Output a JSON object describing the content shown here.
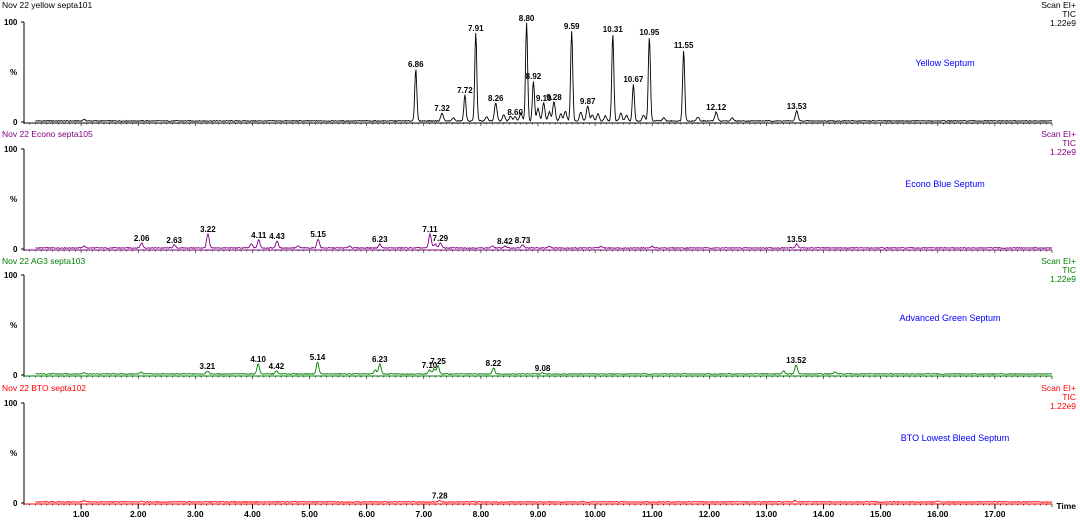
{
  "chart_data": {
    "type": "line",
    "shared_x_axis": {
      "label": "Time",
      "range": [
        0,
        18.0
      ],
      "tick_labels": [
        "1.00",
        "2.00",
        "3.00",
        "4.00",
        "5.00",
        "6.00",
        "7.00",
        "8.00",
        "9.00",
        "10.00",
        "11.00",
        "12.00",
        "13.00",
        "14.00",
        "15.00",
        "16.00",
        "17.00"
      ],
      "tick_values": [
        1,
        2,
        3,
        4,
        5,
        6,
        7,
        8,
        9,
        10,
        11,
        12,
        13,
        14,
        15,
        16,
        17
      ]
    },
    "y_axis": {
      "ticks": [
        "100",
        "%",
        "0"
      ],
      "range": [
        0,
        100
      ]
    },
    "panels": [
      {
        "header": "Nov 22 yellow septa101",
        "scan": "Scan EI+",
        "tic": "TIC",
        "intensity": "1.22e9",
        "label": "Yellow Septum",
        "color": "#000000",
        "peaks": [
          {
            "rt": 6.86,
            "label": "6.86",
            "v": 52
          },
          {
            "rt": 7.32,
            "label": "7.32",
            "v": 8
          },
          {
            "rt": 7.72,
            "label": "7.72",
            "v": 26
          },
          {
            "rt": 7.91,
            "label": "7.91",
            "v": 88
          },
          {
            "rt": 8.26,
            "label": "8.26",
            "v": 18
          },
          {
            "rt": 8.6,
            "label": "8.60",
            "v": 4
          },
          {
            "rt": 8.8,
            "label": "8.80",
            "v": 98
          },
          {
            "rt": 8.92,
            "label": "8.92",
            "v": 40
          },
          {
            "rt": 9.1,
            "label": "9.10",
            "v": 18
          },
          {
            "rt": 9.28,
            "label": "9.28",
            "v": 19
          },
          {
            "rt": 9.59,
            "label": "9.59",
            "v": 90
          },
          {
            "rt": 9.87,
            "label": "9.87",
            "v": 15
          },
          {
            "rt": 10.31,
            "label": "10.31",
            "v": 87
          },
          {
            "rt": 10.67,
            "label": "10.67",
            "v": 37
          },
          {
            "rt": 10.95,
            "label": "10.95",
            "v": 84
          },
          {
            "rt": 11.55,
            "label": "11.55",
            "v": 71
          },
          {
            "rt": 12.12,
            "label": "12.12",
            "v": 9
          },
          {
            "rt": 13.53,
            "label": "13.53",
            "v": 10
          }
        ],
        "minor_peaks": [
          {
            "rt": 1.05,
            "v": 1.5
          },
          {
            "rt": 7.52,
            "v": 3
          },
          {
            "rt": 8.1,
            "v": 4
          },
          {
            "rt": 8.4,
            "v": 6
          },
          {
            "rt": 8.52,
            "v": 5
          },
          {
            "rt": 8.7,
            "v": 8
          },
          {
            "rt": 9.0,
            "v": 13
          },
          {
            "rt": 9.2,
            "v": 9
          },
          {
            "rt": 9.4,
            "v": 7
          },
          {
            "rt": 9.48,
            "v": 10
          },
          {
            "rt": 9.75,
            "v": 9
          },
          {
            "rt": 9.95,
            "v": 6
          },
          {
            "rt": 10.05,
            "v": 7
          },
          {
            "rt": 10.18,
            "v": 5
          },
          {
            "rt": 10.45,
            "v": 8
          },
          {
            "rt": 10.55,
            "v": 6
          },
          {
            "rt": 10.85,
            "v": 6
          },
          {
            "rt": 11.2,
            "v": 3
          },
          {
            "rt": 11.8,
            "v": 4
          },
          {
            "rt": 12.4,
            "v": 3
          }
        ]
      },
      {
        "header": "Nov 22 Econo septa105",
        "scan": "Scan EI+",
        "tic": "TIC",
        "intensity": "1.22e9",
        "label": "Econo Blue Septum",
        "color": "#800080",
        "peaks": [
          {
            "rt": 2.06,
            "label": "2.06",
            "v": 5
          },
          {
            "rt": 2.63,
            "label": "2.63",
            "v": 3
          },
          {
            "rt": 3.22,
            "label": "3.22",
            "v": 14
          },
          {
            "rt": 4.11,
            "label": "4.11",
            "v": 8
          },
          {
            "rt": 4.43,
            "label": "4.43",
            "v": 7
          },
          {
            "rt": 5.15,
            "label": "5.15",
            "v": 9
          },
          {
            "rt": 6.23,
            "label": "6.23",
            "v": 4
          },
          {
            "rt": 7.11,
            "label": "7.11",
            "v": 14
          },
          {
            "rt": 7.29,
            "label": "7.29",
            "v": 5
          },
          {
            "rt": 8.42,
            "label": "8.42",
            "v": 2
          },
          {
            "rt": 8.73,
            "label": "8.73",
            "v": 3
          },
          {
            "rt": 13.53,
            "label": "13.53",
            "v": 4
          }
        ],
        "minor_peaks": [
          {
            "rt": 1.05,
            "v": 2
          },
          {
            "rt": 3.98,
            "v": 4
          },
          {
            "rt": 4.8,
            "v": 2
          },
          {
            "rt": 5.7,
            "v": 2
          },
          {
            "rt": 7.2,
            "v": 4
          },
          {
            "rt": 8.2,
            "v": 2
          },
          {
            "rt": 9.2,
            "v": 2
          },
          {
            "rt": 10.1,
            "v": 1.5
          },
          {
            "rt": 11.0,
            "v": 1.5
          }
        ]
      },
      {
        "header": "Nov 22 AG3 septa103",
        "scan": "Scan EI+",
        "tic": "TIC",
        "intensity": "1.22e9",
        "label": "Advanced Green Septum",
        "color": "#008000",
        "peaks": [
          {
            "rt": 3.21,
            "label": "3.21",
            "v": 3
          },
          {
            "rt": 4.1,
            "label": "4.10",
            "v": 10
          },
          {
            "rt": 4.42,
            "label": "4.42",
            "v": 3
          },
          {
            "rt": 5.14,
            "label": "5.14",
            "v": 12
          },
          {
            "rt": 6.23,
            "label": "6.23",
            "v": 10
          },
          {
            "rt": 7.1,
            "label": "7.10",
            "v": 4
          },
          {
            "rt": 7.25,
            "label": "7.25",
            "v": 8
          },
          {
            "rt": 8.22,
            "label": "8.22",
            "v": 6
          },
          {
            "rt": 9.08,
            "label": "9.08",
            "v": 1
          },
          {
            "rt": 13.52,
            "label": "13.52",
            "v": 9
          }
        ],
        "minor_peaks": [
          {
            "rt": 1.05,
            "v": 1.5
          },
          {
            "rt": 2.05,
            "v": 2
          },
          {
            "rt": 6.15,
            "v": 4
          },
          {
            "rt": 7.18,
            "v": 5
          },
          {
            "rt": 13.3,
            "v": 3
          },
          {
            "rt": 14.2,
            "v": 2
          }
        ]
      },
      {
        "header": "Nov 22 BTO septa102",
        "scan": "Scan EI+",
        "tic": "TIC",
        "intensity": "1.22e9",
        "label": "BTO Lowest Bleed Septum",
        "color": "#ff0000",
        "peaks": [
          {
            "rt": 7.28,
            "label": "7.28",
            "v": 1.5
          }
        ],
        "minor_peaks": [
          {
            "rt": 1.05,
            "v": 1
          },
          {
            "rt": 2.06,
            "v": 1
          },
          {
            "rt": 13.5,
            "v": 1.5
          },
          {
            "rt": 16.0,
            "v": 0.8
          }
        ]
      }
    ]
  }
}
